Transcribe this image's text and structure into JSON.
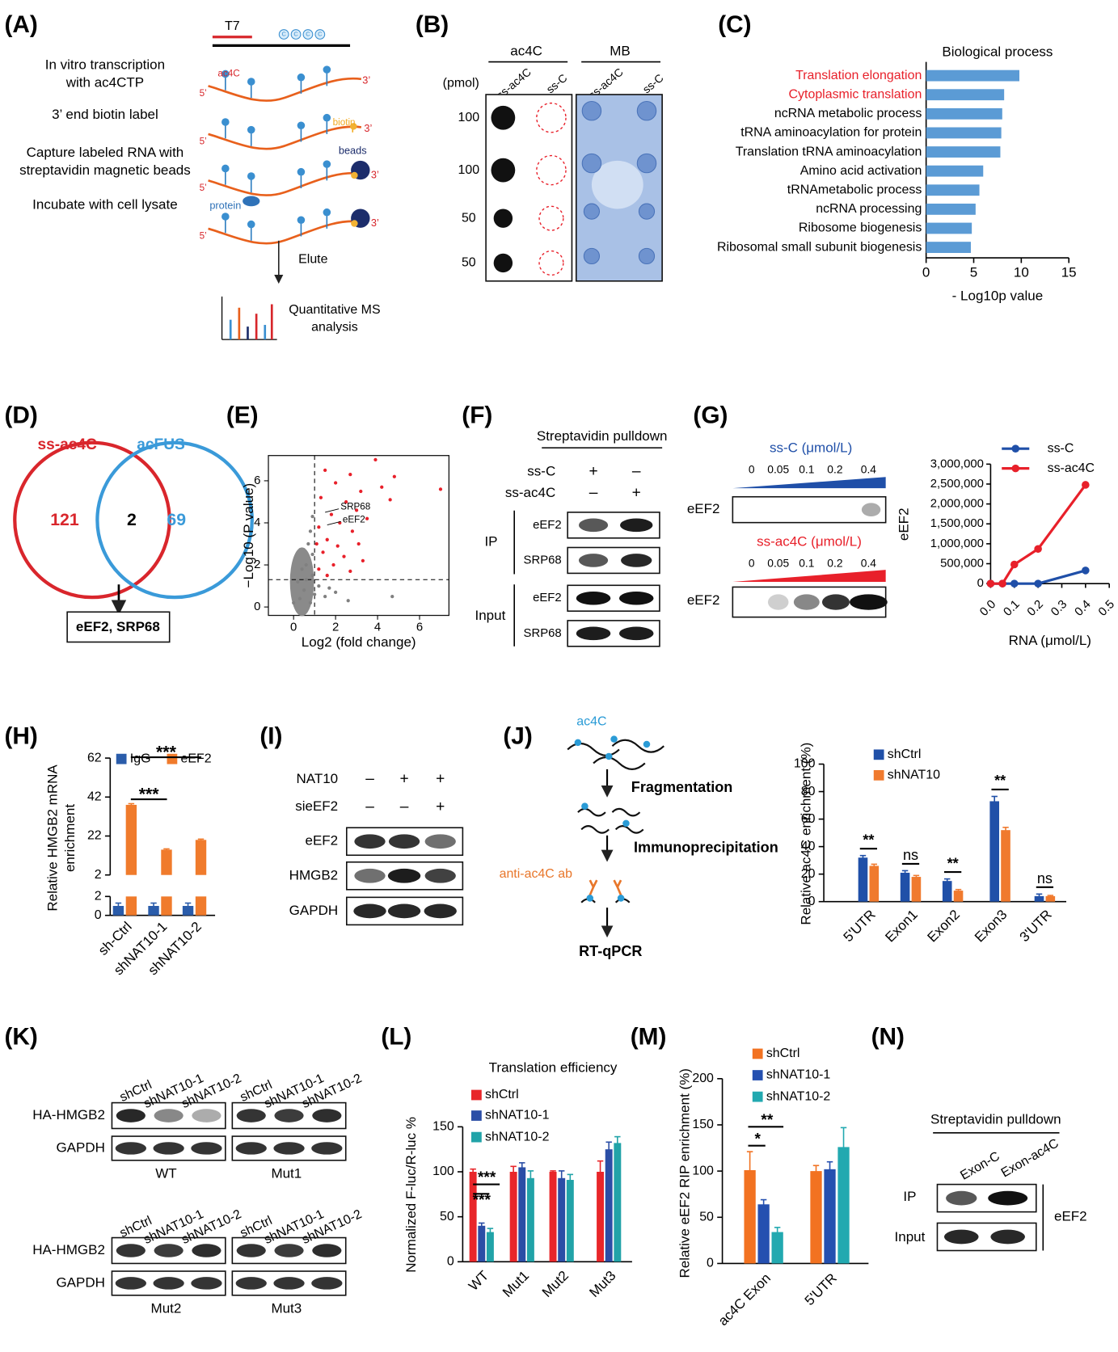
{
  "panel_labels": [
    "(A)",
    "(B)",
    "(C)",
    "(D)",
    "(E)",
    "(F)",
    "(G)",
    "(H)",
    "(I)",
    "(J)",
    "(K)",
    "(L)",
    "(M)",
    "(N)"
  ],
  "panel_a": {
    "t7": "T7",
    "c": "C",
    "steps": [
      [
        "In vitro transcription",
        "with ac4CTP"
      ],
      [
        "3’ end biotin label"
      ],
      [
        "Capture labeled RNA with",
        "streptavidin magnetic beads"
      ],
      [
        "Incubate with cell lysate"
      ]
    ],
    "ac4c": "ac4C",
    "five_prime": "5’",
    "three_prime": "3’",
    "biotin": "biotin",
    "beads": "beads",
    "protein": "protein",
    "elute": "Elute",
    "ms": [
      "Quantitative MS",
      "analysis"
    ]
  },
  "panel_b": {
    "groups": [
      "ac4C",
      "MB"
    ],
    "unit": "(pmol)",
    "lanes": [
      "ss-ac4C",
      "ss-C"
    ],
    "amounts": [
      100,
      100,
      50,
      50
    ]
  },
  "panel_d": {
    "sets": [
      "ss-ac4C",
      "acFUS"
    ],
    "counts": [
      121,
      2,
      69
    ],
    "shared": "eEF2, SRP68"
  },
  "panel_f": {
    "title": "Streptavidin pulldown",
    "conditions": [
      {
        "name": "ss-C",
        "signs": [
          "+",
          "–"
        ]
      },
      {
        "name": "ss-ac4C",
        "signs": [
          "–",
          "+"
        ]
      }
    ],
    "sections": [
      "IP",
      "Input"
    ],
    "proteins": [
      "eEF2",
      "SRP68"
    ]
  },
  "panel_g": {
    "titles": [
      "ss-C (μmol/L)",
      "ss-ac4C (μmol/L)"
    ],
    "concentrations": [
      "0",
      "0.05",
      "0.1",
      "0.2",
      "0.4"
    ],
    "protein": "eEF2"
  },
  "panel_i": {
    "conditions": [
      {
        "name": "NAT10",
        "signs": [
          "–",
          "+",
          "+"
        ]
      },
      {
        "name": "sieEF2",
        "signs": [
          "–",
          "–",
          "+"
        ]
      }
    ],
    "proteins": [
      "eEF2",
      "HMGB2",
      "GAPDH"
    ]
  },
  "panel_j": {
    "ac4c": "ac4C",
    "steps": [
      "Fragmentation",
      "Immunoprecipitation"
    ],
    "antibody": "anti-ac4C ab",
    "readout": "RT-qPCR"
  },
  "panel_k": {
    "lanes": [
      "shCtrl",
      "shNAT10-1",
      "shNAT10-2"
    ],
    "proteins": [
      "HA-HMGB2",
      "GAPDH"
    ],
    "constructs": [
      "WT",
      "Mut1",
      "Mut2",
      "Mut3"
    ]
  },
  "panel_n": {
    "title": "Streptavidin pulldown",
    "lanes": [
      "Exon-C",
      "Exon-ac4C"
    ],
    "sections": [
      "IP",
      "Input"
    ],
    "protein": "eEF2"
  },
  "chart_data": [
    {
      "type": "hbar",
      "title": "Biological process",
      "categories": [
        "Translation elongation",
        "Cytoplasmic translation",
        "ncRNA metabolic process",
        "tRNA aminoacylation for protein",
        "Translation tRNA aminoacylation",
        "Amino acid activation",
        "tRNAmetabolic process",
        "ncRNA processing",
        "Ribosome biogenesis",
        "Ribosomal small subunit biogenesis"
      ],
      "values": [
        9.8,
        8.2,
        8.0,
        7.9,
        7.8,
        6.0,
        5.6,
        5.2,
        4.8,
        4.7
      ],
      "color": "#5b9bd5",
      "label_colors": [
        "#e8202a",
        "#e8202a",
        "#000000",
        "#000000",
        "#000000",
        "#000000",
        "#000000",
        "#000000",
        "#000000",
        "#000000"
      ],
      "xlim": [
        0,
        15
      ],
      "xticks": [
        0,
        5,
        10,
        15
      ],
      "xlabel": "- Log10p value"
    },
    {
      "type": "scatter",
      "xlabel": "Log2 (fold change)",
      "ylabel": "−Log10 (P value)",
      "xlim": [
        -1.2,
        7.4
      ],
      "ylim": [
        -0.4,
        7.2
      ],
      "xticks": [
        0,
        2,
        4,
        6
      ],
      "yticks": [
        0,
        2,
        4,
        6
      ],
      "thresholds": {
        "x": 1,
        "y": 1.3
      },
      "series": [
        {
          "color": "#808080",
          "x": [
            0.8,
            0.5,
            0.9,
            0.3,
            1.0,
            0.6,
            0.9,
            0.7,
            0.8,
            0.2,
            1.5,
            2.0,
            1.2,
            0.4,
            0.9,
            1.7,
            2.6,
            4.7,
            0.0,
            0.6
          ],
          "y": [
            0.2,
            0.8,
            1.5,
            0.4,
            0.6,
            2.0,
            2.5,
            3.0,
            3.6,
            1.2,
            0.5,
            0.7,
            1.0,
            1.8,
            4.3,
            0.9,
            0.3,
            0.5,
            0.2,
            1.3
          ]
        },
        {
          "color": "#e8202a",
          "x": [
            3.9,
            4.8,
            7.0,
            2.7,
            1.5,
            2.0,
            3.2,
            4.2,
            4.6,
            2.5,
            1.3,
            3.0,
            1.8,
            2.2,
            3.5,
            1.2,
            2.8,
            1.6,
            2.1,
            3.1,
            1.4,
            2.4,
            1.9,
            1.2,
            2.7,
            1.6,
            3.3,
            1.1
          ],
          "y": [
            7.0,
            6.2,
            5.6,
            6.3,
            6.5,
            5.9,
            5.5,
            5.7,
            5.1,
            5.0,
            5.2,
            4.6,
            4.4,
            4.0,
            4.2,
            3.8,
            3.6,
            3.2,
            2.9,
            3.0,
            2.6,
            2.4,
            2.0,
            1.8,
            1.7,
            1.5,
            2.2,
            3.0
          ]
        }
      ],
      "annotations": [
        {
          "text": "SRP68",
          "x": 1.5,
          "y": 4.5
        },
        {
          "text": "eEF2",
          "x": 1.6,
          "y": 3.9
        }
      ]
    },
    {
      "type": "line",
      "x": [
        0,
        0.05,
        0.1,
        0.2,
        0.4
      ],
      "series": [
        {
          "name": "ss-C",
          "color": "#1f4fa8",
          "values": [
            0,
            0,
            0,
            0,
            330000
          ]
        },
        {
          "name": "ss-ac4C",
          "color": "#e8202a",
          "values": [
            0,
            0,
            480000,
            870000,
            2480000
          ]
        }
      ],
      "xlim": [
        0,
        0.5
      ],
      "ylim": [
        0,
        3000000
      ],
      "xticks": [
        {
          "value": 0,
          "label": "0.0"
        },
        0.1,
        0.2,
        0.3,
        0.4,
        0.5
      ],
      "yticks": [
        0,
        {
          "value": 500000,
          "label": "500,000"
        },
        {
          "value": 1000000,
          "label": "1,000,000"
        },
        {
          "value": 1500000,
          "label": "1,500,000"
        },
        {
          "value": 2000000,
          "label": "2,000,000"
        },
        {
          "value": 2500000,
          "label": "2,500,000"
        },
        {
          "value": 3000000,
          "label": "3,000,000"
        }
      ],
      "xlabel": "RNA (μmol/L)",
      "ylabel": "eEF2"
    },
    {
      "type": "bar",
      "categories": [
        "sh-Ctrl",
        "shNAT10-1",
        "shNAT10-2"
      ],
      "series": [
        {
          "name": "IgG",
          "color": "#2a5caa",
          "values": [
            1,
            1,
            1
          ],
          "errors": [
            0.3,
            0.3,
            0.3
          ]
        },
        {
          "name": "eEF2",
          "color": "#f07b2c",
          "values": [
            38,
            15,
            20
          ],
          "errors": [
            0.6,
            0.4,
            0.4
          ]
        }
      ],
      "y_segments": [
        {
          "ylim": [
            0,
            2
          ],
          "yticks": [
            0,
            2
          ]
        },
        {
          "ylim": [
            2,
            62
          ],
          "yticks": [
            2,
            22,
            42,
            62
          ]
        }
      ],
      "ylabel": [
        "Relative HMGB2 mRNA",
        "enrichment"
      ],
      "significance": [
        "***",
        "***"
      ]
    },
    {
      "type": "bar",
      "categories": [
        "5'UTR",
        "Exon1",
        "Exon2",
        "Exon3",
        "3'UTR"
      ],
      "series": [
        {
          "name": "shCtrl",
          "color": "#2050a8",
          "values": [
            32,
            21,
            15,
            73,
            4
          ],
          "errors": [
            1.5,
            1.5,
            1.5,
            3.5,
            1.5
          ]
        },
        {
          "name": "shNAT10",
          "color": "#f07a2e",
          "values": [
            26,
            18,
            8,
            52,
            4
          ],
          "errors": [
            1.2,
            1,
            0.8,
            2,
            0.5
          ]
        }
      ],
      "ylim": [
        0,
        100
      ],
      "yticks": [
        0,
        20,
        40,
        60,
        80,
        100
      ],
      "ylabel": "Relative ac4C enrichment (%)",
      "significance": [
        "**",
        "ns",
        "**",
        "**",
        "ns"
      ]
    },
    {
      "type": "bar",
      "title": "Translation efficiency",
      "categories": [
        "WT",
        "Mut1",
        "Mut2",
        "Mut3"
      ],
      "series": [
        {
          "name": "shCtrl",
          "color": "#e8262a",
          "values": [
            100,
            100,
            100,
            100
          ],
          "errors": [
            3,
            6,
            1,
            12
          ]
        },
        {
          "name": "shNAT10-1",
          "color": "#2b4ea6",
          "values": [
            40,
            105,
            93,
            125
          ],
          "errors": [
            3,
            5,
            8,
            8
          ]
        },
        {
          "name": "shNAT10-2",
          "color": "#21a3a8",
          "values": [
            33,
            93,
            91,
            132
          ],
          "errors": [
            4,
            8,
            6,
            7
          ]
        }
      ],
      "ylim": [
        0,
        150
      ],
      "yticks": [
        0,
        50,
        100,
        150
      ],
      "ylabel": "Normalized F-luc/R-luc %",
      "significance": [
        "***",
        "***"
      ]
    },
    {
      "type": "bar",
      "categories": [
        "ac4C Exon",
        "5'UTR"
      ],
      "series": [
        {
          "name": "shCtrl",
          "color": "#f27221",
          "values": [
            101,
            100
          ],
          "errors": [
            20,
            6
          ]
        },
        {
          "name": "shNAT10-1",
          "color": "#2550b0",
          "values": [
            64,
            102
          ],
          "errors": [
            5,
            8
          ]
        },
        {
          "name": "shNAT10-2",
          "color": "#22a9b0",
          "values": [
            34,
            126
          ],
          "errors": [
            5,
            21
          ]
        }
      ],
      "ylim": [
        0,
        200
      ],
      "yticks": [
        0,
        50,
        100,
        150,
        200
      ],
      "ylabel": "Relative eEF2 RIP enrichment (%)",
      "significance": [
        "*",
        "**"
      ]
    }
  ]
}
